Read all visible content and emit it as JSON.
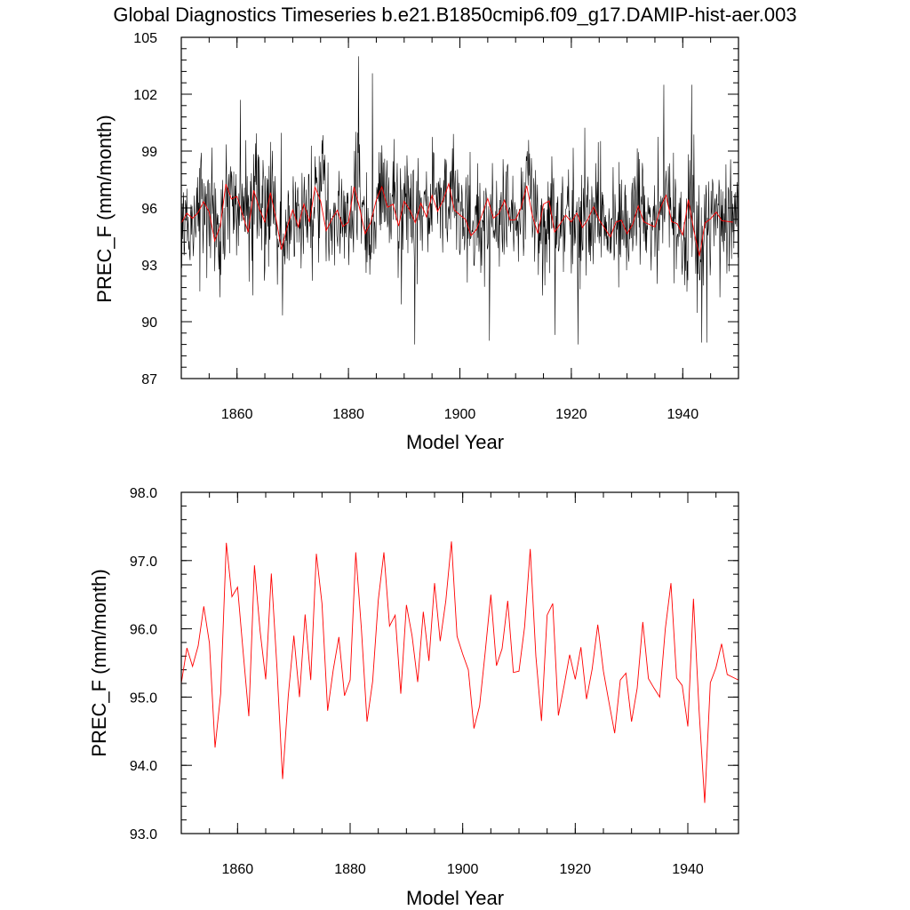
{
  "figure": {
    "title": "Global Diagnostics Timeseries b.e21.B1850cmip6.f09_g17.DAMIP-hist-aer.003"
  },
  "chart_data": [
    {
      "type": "line",
      "title": "Global Diagnostics Timeseries b.e21.B1850cmip6.f09_g17.DAMIP-hist-aer.003",
      "xlabel": "Model Year",
      "ylabel": "PREC_F (mm/month)",
      "xlim": [
        1850,
        1950
      ],
      "ylim": [
        87,
        105
      ],
      "x_ticks": [
        "1860",
        "1880",
        "1900",
        "1920",
        "1940"
      ],
      "y_ticks": [
        "87",
        "90",
        "93",
        "96",
        "99",
        "102",
        "105"
      ],
      "series": [
        {
          "color": "#000000",
          "monthly_extremes": [
            {
              "x": 1881.8,
              "y": 104.0
            },
            {
              "x": 1884.3,
              "y": 103.1
            },
            {
              "x": 1936.6,
              "y": 102.5
            },
            {
              "x": 1941.6,
              "y": 102.5
            },
            {
              "x": 1860.6,
              "y": 101.7
            },
            {
              "x": 1891.9,
              "y": 88.8
            },
            {
              "x": 1921.2,
              "y": 88.8
            },
            {
              "x": 1943.4,
              "y": 88.9
            },
            {
              "x": 1944.3,
              "y": 88.9
            },
            {
              "x": 1905.3,
              "y": 89.0
            }
          ]
        },
        {
          "color": "#ff0000",
          "x": [
            1850,
            1851,
            1852,
            1853,
            1854,
            1855,
            1856,
            1857,
            1858,
            1859,
            1860,
            1861,
            1862,
            1863,
            1864,
            1865,
            1866,
            1867,
            1868,
            1869,
            1870,
            1871,
            1872,
            1873,
            1874,
            1875,
            1876,
            1877,
            1878,
            1879,
            1880,
            1881,
            1882,
            1883,
            1884,
            1885,
            1886,
            1887,
            1888,
            1889,
            1890,
            1891,
            1892,
            1893,
            1894,
            1895,
            1896,
            1897,
            1898,
            1899,
            1900,
            1901,
            1902,
            1903,
            1904,
            1905,
            1906,
            1907,
            1908,
            1909,
            1910,
            1911,
            1912,
            1913,
            1914,
            1915,
            1916,
            1917,
            1918,
            1919,
            1920,
            1921,
            1922,
            1923,
            1924,
            1925,
            1926,
            1927,
            1928,
            1929,
            1930,
            1931,
            1932,
            1933,
            1934,
            1935,
            1936,
            1937,
            1938,
            1939,
            1940,
            1941,
            1942,
            1943,
            1944,
            1945,
            1946,
            1947,
            1948,
            1949
          ],
          "values": [
            95.2,
            95.72,
            95.45,
            95.75,
            96.33,
            95.79,
            94.26,
            95.05,
            97.26,
            96.47,
            96.61,
            95.65,
            94.72,
            96.93,
            95.97,
            95.26,
            96.81,
            95.43,
            93.8,
            95.01,
            95.9,
            95.0,
            96.21,
            95.25,
            97.1,
            96.37,
            94.8,
            95.4,
            95.88,
            95.02,
            95.25,
            97.12,
            96.0,
            94.64,
            95.23,
            96.42,
            97.12,
            96.04,
            96.2,
            95.05,
            96.35,
            95.9,
            95.22,
            96.25,
            95.53,
            96.67,
            95.82,
            96.41,
            97.28,
            95.89,
            95.63,
            95.4,
            94.54,
            94.87,
            95.66,
            96.5,
            95.46,
            95.71,
            96.41,
            95.36,
            95.38,
            96.03,
            97.17,
            95.6,
            94.65,
            96.2,
            96.37,
            94.73,
            95.16,
            95.62,
            95.26,
            95.73,
            94.97,
            95.41,
            96.06,
            95.38,
            94.92,
            94.47,
            95.25,
            95.35,
            94.64,
            95.13,
            96.1,
            95.27,
            95.13,
            95.0,
            96.0,
            96.67,
            95.28,
            95.17,
            94.57,
            96.44,
            94.8,
            93.45,
            95.21,
            95.43,
            95.78,
            95.33,
            95.29,
            95.25
          ]
        }
      ]
    },
    {
      "type": "line",
      "xlabel": "Model Year",
      "ylabel": "PREC_F (mm/month)",
      "xlim": [
        1850,
        1949
      ],
      "ylim": [
        93.0,
        98.0
      ],
      "x_ticks": [
        "1860",
        "1880",
        "1900",
        "1920",
        "1940"
      ],
      "y_ticks": [
        "93.0",
        "94.0",
        "95.0",
        "96.0",
        "97.0",
        "98.0"
      ],
      "series": [
        {
          "color": "#ff0000",
          "x": [
            1850,
            1851,
            1852,
            1853,
            1854,
            1855,
            1856,
            1857,
            1858,
            1859,
            1860,
            1861,
            1862,
            1863,
            1864,
            1865,
            1866,
            1867,
            1868,
            1869,
            1870,
            1871,
            1872,
            1873,
            1874,
            1875,
            1876,
            1877,
            1878,
            1879,
            1880,
            1881,
            1882,
            1883,
            1884,
            1885,
            1886,
            1887,
            1888,
            1889,
            1890,
            1891,
            1892,
            1893,
            1894,
            1895,
            1896,
            1897,
            1898,
            1899,
            1900,
            1901,
            1902,
            1903,
            1904,
            1905,
            1906,
            1907,
            1908,
            1909,
            1910,
            1911,
            1912,
            1913,
            1914,
            1915,
            1916,
            1917,
            1918,
            1919,
            1920,
            1921,
            1922,
            1923,
            1924,
            1925,
            1926,
            1927,
            1928,
            1929,
            1930,
            1931,
            1932,
            1933,
            1934,
            1935,
            1936,
            1937,
            1938,
            1939,
            1940,
            1941,
            1942,
            1943,
            1944,
            1945,
            1946,
            1947,
            1948,
            1949
          ],
          "values": [
            95.2,
            95.72,
            95.45,
            95.75,
            96.33,
            95.79,
            94.26,
            95.05,
            97.26,
            96.47,
            96.61,
            95.65,
            94.72,
            96.93,
            95.97,
            95.26,
            96.81,
            95.43,
            93.8,
            95.01,
            95.9,
            95.0,
            96.21,
            95.25,
            97.1,
            96.37,
            94.8,
            95.4,
            95.88,
            95.02,
            95.25,
            97.12,
            96.0,
            94.64,
            95.23,
            96.42,
            97.12,
            96.04,
            96.2,
            95.05,
            96.35,
            95.9,
            95.22,
            96.25,
            95.53,
            96.67,
            95.82,
            96.41,
            97.28,
            95.89,
            95.63,
            95.4,
            94.54,
            94.87,
            95.66,
            96.5,
            95.46,
            95.71,
            96.41,
            95.36,
            95.38,
            96.03,
            97.17,
            95.6,
            94.65,
            96.2,
            96.37,
            94.73,
            95.16,
            95.62,
            95.26,
            95.73,
            94.97,
            95.41,
            96.06,
            95.38,
            94.92,
            94.47,
            95.25,
            95.35,
            94.64,
            95.13,
            96.1,
            95.27,
            95.13,
            95.0,
            96.0,
            96.67,
            95.28,
            95.17,
            94.57,
            96.44,
            94.8,
            93.45,
            95.21,
            95.43,
            95.78,
            95.33,
            95.29,
            95.25
          ]
        }
      ]
    }
  ]
}
